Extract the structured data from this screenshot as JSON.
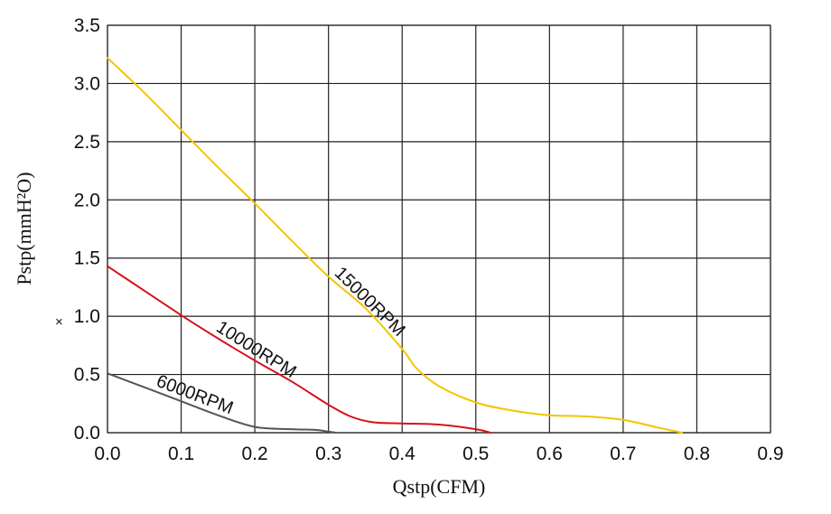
{
  "chart_data": {
    "type": "line",
    "xlabel": "Qstp(CFM)",
    "ylabel": "Pstp(mmH²O)",
    "ylabel_multiplier": "×",
    "xlim": [
      0,
      0.9
    ],
    "ylim": [
      0,
      3.5
    ],
    "x_ticks": [
      "0.0",
      "0.1",
      "0.2",
      "0.3",
      "0.4",
      "0.5",
      "0.6",
      "0.7",
      "0.8",
      "0.9"
    ],
    "y_ticks": [
      "0.0",
      "0.5",
      "1.0",
      "1.5",
      "2.0",
      "2.5",
      "3.0",
      "3.5"
    ],
    "grid": true,
    "series": [
      {
        "name": "15000RPM",
        "color": "#f2c500",
        "points": [
          [
            0,
            3.22
          ],
          [
            0.05,
            2.92
          ],
          [
            0.1,
            2.6
          ],
          [
            0.15,
            2.28
          ],
          [
            0.2,
            1.97
          ],
          [
            0.25,
            1.65
          ],
          [
            0.3,
            1.34
          ],
          [
            0.35,
            1.07
          ],
          [
            0.4,
            0.72
          ],
          [
            0.42,
            0.55
          ],
          [
            0.45,
            0.4
          ],
          [
            0.5,
            0.26
          ],
          [
            0.55,
            0.19
          ],
          [
            0.6,
            0.15
          ],
          [
            0.65,
            0.14
          ],
          [
            0.7,
            0.11
          ],
          [
            0.75,
            0.04
          ],
          [
            0.78,
            0
          ]
        ]
      },
      {
        "name": "10000RPM",
        "color": "#d8101c",
        "points": [
          [
            0,
            1.43
          ],
          [
            0.05,
            1.22
          ],
          [
            0.1,
            1.01
          ],
          [
            0.15,
            0.81
          ],
          [
            0.2,
            0.62
          ],
          [
            0.25,
            0.44
          ],
          [
            0.3,
            0.24
          ],
          [
            0.33,
            0.14
          ],
          [
            0.36,
            0.09
          ],
          [
            0.4,
            0.08
          ],
          [
            0.45,
            0.07
          ],
          [
            0.5,
            0.03
          ],
          [
            0.52,
            0
          ]
        ]
      },
      {
        "name": "6000RPM",
        "color": "#555555",
        "points": [
          [
            0,
            0.51
          ],
          [
            0.05,
            0.39
          ],
          [
            0.1,
            0.27
          ],
          [
            0.15,
            0.15
          ],
          [
            0.2,
            0.05
          ],
          [
            0.25,
            0.03
          ],
          [
            0.28,
            0.025
          ],
          [
            0.3,
            0.01
          ],
          [
            0.31,
            0
          ]
        ]
      }
    ]
  }
}
